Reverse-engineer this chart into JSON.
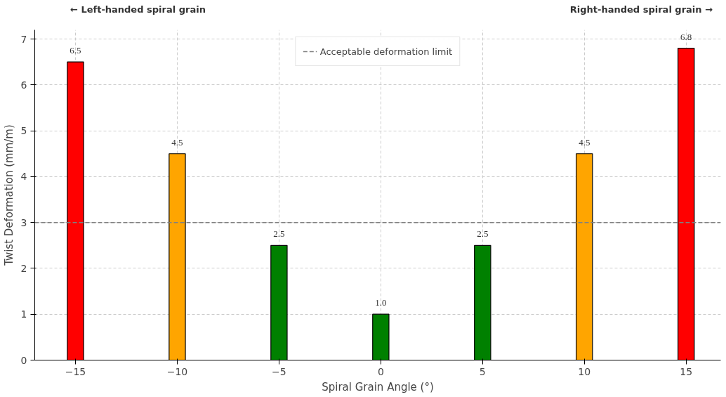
{
  "chart_data": {
    "type": "bar",
    "xlabel": "Spiral Grain Angle (°)",
    "ylabel": "Twist Deformation (mm/m)",
    "x": [
      -15,
      -10,
      -5,
      0,
      5,
      10,
      15
    ],
    "values": [
      6.5,
      4.5,
      2.5,
      1.0,
      2.5,
      4.5,
      6.8
    ],
    "colors": [
      "#ff0000",
      "#ffa500",
      "#008000",
      "#008000",
      "#008000",
      "#ffa500",
      "#ff0000"
    ],
    "value_labels": [
      "6.5",
      "4.5",
      "2.5",
      "1.0",
      "2.5",
      "4.5",
      "6.8"
    ],
    "xlim": [
      -17,
      16.7
    ],
    "ylim": [
      0,
      7.2
    ],
    "xticks": [
      {
        "value": -15,
        "label": "−15"
      },
      {
        "value": -10,
        "label": "−10"
      },
      {
        "value": -5,
        "label": "−5"
      },
      0,
      5,
      10,
      15
    ],
    "yticks": [
      0,
      1,
      2,
      3,
      4,
      5,
      6,
      7
    ],
    "ref_lines": [
      {
        "axis": "y",
        "value": 3,
        "label": "Acceptable deformation limit",
        "color": "#808080",
        "line_style": "dashed"
      }
    ],
    "annotations": [
      "← Left-handed spiral grain",
      "Right-handed spiral grain →"
    ],
    "grid": true,
    "legend": "top"
  }
}
